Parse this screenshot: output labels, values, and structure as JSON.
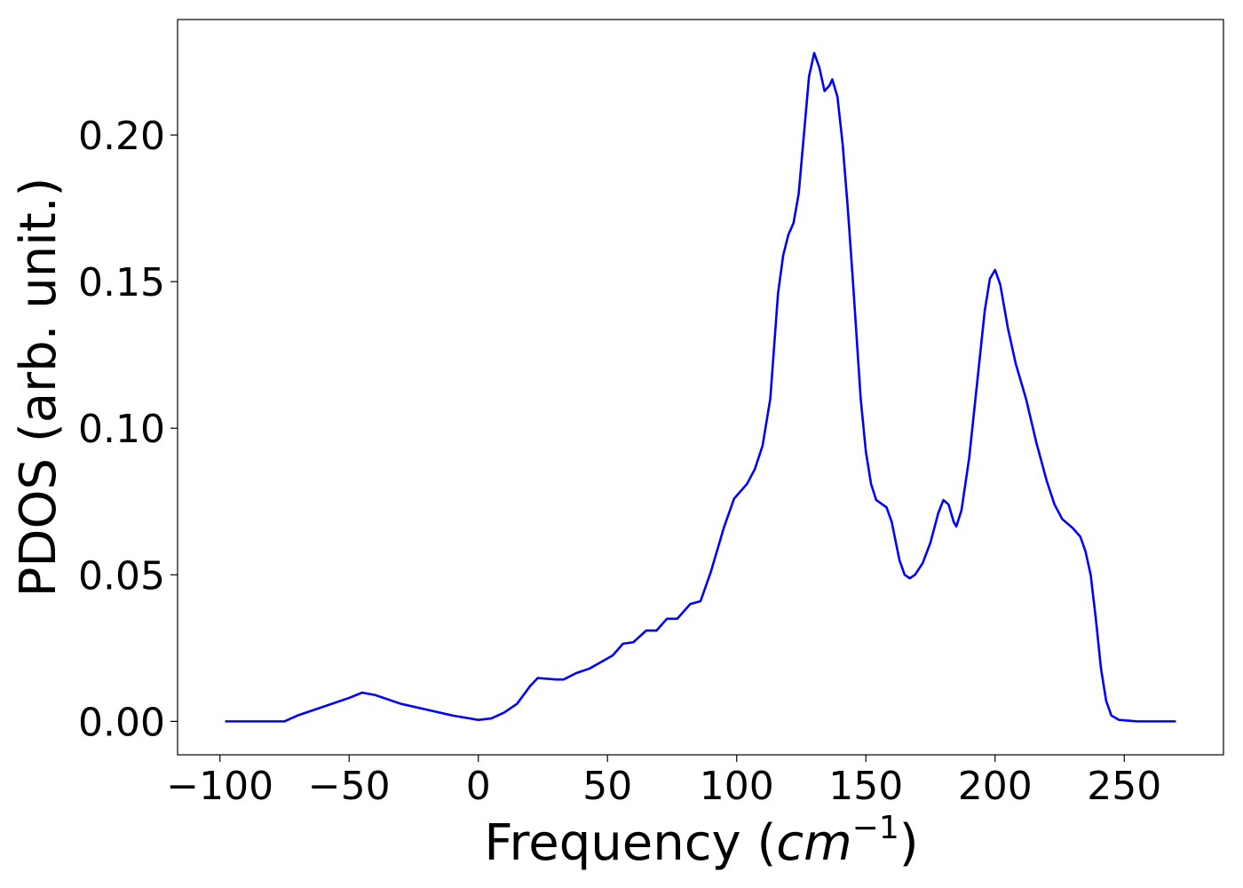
{
  "chart_data": {
    "type": "line",
    "xlabel": [
      "Frequency (",
      "cm",
      "−1",
      ")"
    ],
    "ylabel": "PDOS (arb. unit.)",
    "xlim": [
      -116.4,
      288.4
    ],
    "ylim": [
      -0.0114,
      0.2394
    ],
    "xticks": [
      {
        "value": -100,
        "label": "−100"
      },
      {
        "value": -50,
        "label": "−50"
      },
      0,
      50,
      100,
      150,
      200,
      250
    ],
    "yticks": [
      {
        "value": 0,
        "label": "0.00"
      },
      {
        "value": 0.05,
        "label": "0.05"
      },
      {
        "value": 0.1,
        "label": "0.10"
      },
      {
        "value": 0.15,
        "label": "0.15"
      },
      {
        "value": 0.2,
        "label": "0.20"
      }
    ],
    "series": [
      {
        "color": "#0000ff",
        "x": [
          -98,
          -75,
          -70,
          -60,
          -50,
          -45,
          -40,
          -30,
          -20,
          -10,
          0,
          5,
          10,
          15,
          20,
          23,
          30,
          33,
          38,
          43,
          47,
          52,
          56,
          60,
          65,
          69,
          73,
          77,
          82,
          86,
          90,
          95,
          99,
          104,
          107,
          110,
          113,
          116,
          118,
          120,
          122,
          124,
          126,
          128,
          130,
          132,
          134,
          136,
          137,
          139,
          141,
          143,
          145,
          148,
          150,
          152,
          154,
          158,
          160,
          163,
          165,
          167,
          169,
          172,
          175,
          178,
          180,
          182,
          184,
          185,
          187,
          190,
          193,
          196,
          198,
          200,
          202,
          205,
          208,
          212,
          216,
          220,
          223,
          226,
          230,
          233,
          235,
          237,
          239,
          241,
          243,
          245,
          248,
          255,
          270
        ],
        "values": [
          0,
          0,
          0.002,
          0.005,
          0.008,
          0.0098,
          0.009,
          0.006,
          0.004,
          0.002,
          0.0005,
          0.001,
          0.003,
          0.006,
          0.012,
          0.0148,
          0.0143,
          0.0143,
          0.0165,
          0.018,
          0.02,
          0.0225,
          0.0265,
          0.027,
          0.031,
          0.031,
          0.035,
          0.035,
          0.04,
          0.041,
          0.051,
          0.066,
          0.076,
          0.081,
          0.086,
          0.094,
          0.11,
          0.146,
          0.159,
          0.166,
          0.17,
          0.18,
          0.2,
          0.22,
          0.228,
          0.223,
          0.215,
          0.217,
          0.219,
          0.213,
          0.197,
          0.175,
          0.15,
          0.11,
          0.092,
          0.081,
          0.0755,
          0.073,
          0.068,
          0.055,
          0.05,
          0.0488,
          0.05,
          0.054,
          0.061,
          0.071,
          0.0755,
          0.074,
          0.068,
          0.0665,
          0.072,
          0.09,
          0.115,
          0.14,
          0.151,
          0.154,
          0.149,
          0.134,
          0.122,
          0.11,
          0.095,
          0.082,
          0.074,
          0.069,
          0.066,
          0.063,
          0.058,
          0.05,
          0.035,
          0.018,
          0.007,
          0.002,
          0.0005,
          0,
          0
        ]
      }
    ]
  }
}
